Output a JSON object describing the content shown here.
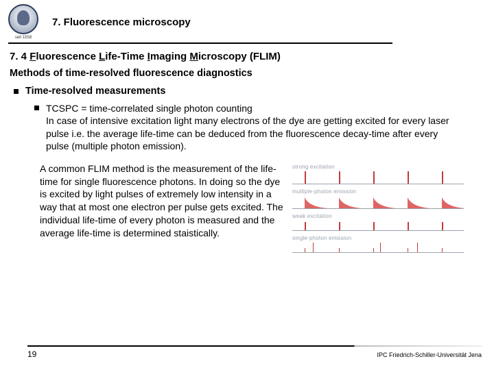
{
  "header": {
    "seal_sub": "seit 1558",
    "chapter": "7. Fluorescence microscopy"
  },
  "section": {
    "number": "7. 4",
    "title_parts": {
      "F": "F",
      "luorescence": "luorescence ",
      "L": "L",
      "ife": "ife-Time ",
      "I": "I",
      "maging": "maging ",
      "M": "M",
      "icroscopy": "icroscopy (FLIM)"
    },
    "subtitle": "Methods of time-resolved fluorescence diagnostics",
    "bullet1": "Time-resolved measurements",
    "sub_line1": "TCSPC = time-correlated single photon counting",
    "sub_body": "In case of intensive excitation light many electrons of the dye are getting excited for every laser pulse i.e. the average life-time can be deduced from the fluorescence decay-time after every pulse (multiple photon emission).",
    "paragraph": "A common FLIM method is the measurement of the life-time for single fluorescence photons. In doing so the dye is excited by light pulses of extremely low intensity in a way that at most one electron per pulse gets excited. The individual life-time of every photon is measured and the average life-time is determined staistically."
  },
  "diagram": {
    "rows": [
      {
        "label": "strong excitation",
        "type": "pulses",
        "positions": [
          18,
          68,
          118,
          168,
          218
        ],
        "height": 18
      },
      {
        "label": "multiple-photon emission",
        "type": "decays",
        "positions": [
          18,
          68,
          118,
          168,
          218
        ]
      },
      {
        "label": "weak excitation",
        "type": "pulses",
        "positions": [
          18,
          68,
          118,
          168,
          218
        ],
        "height": 12
      },
      {
        "label": "single-photon emission",
        "type": "singles",
        "baseline_ticks": [
          18,
          68,
          118,
          168,
          218
        ],
        "emissions": [
          30,
          128,
          182
        ]
      }
    ],
    "colors": {
      "signal": "#c23a3a",
      "axis": "#9aa2ad",
      "decay_fill": "#d94a4a"
    }
  },
  "footer": {
    "page": "19",
    "affiliation": "IPC Friedrich-Schiller-Universität Jena"
  }
}
